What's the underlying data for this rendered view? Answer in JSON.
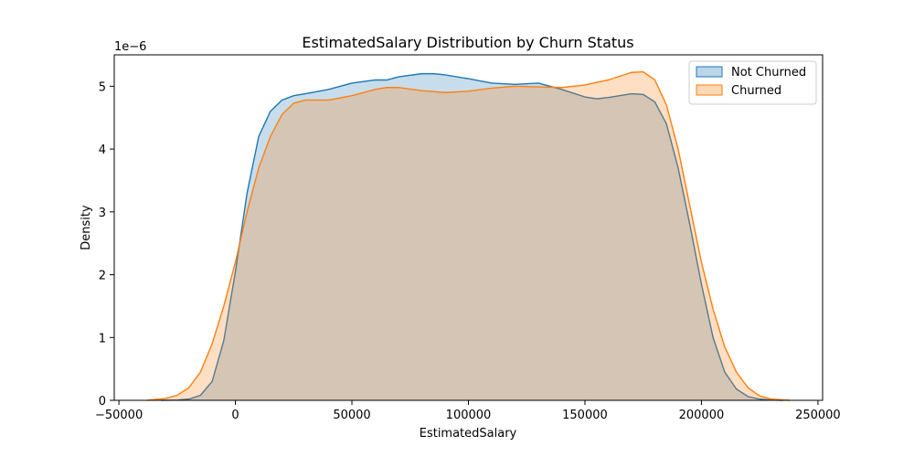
{
  "chart_data": {
    "type": "area",
    "title": "EstimatedSalary Distribution by Churn Status",
    "xlabel": "EstimatedSalary",
    "ylabel": "Density",
    "y_offset_label": "1e−6",
    "xlim": [
      -52000,
      252000
    ],
    "ylim": [
      0,
      5.5
    ],
    "x_ticks": [
      -50000,
      0,
      50000,
      100000,
      150000,
      200000,
      250000
    ],
    "x_tick_labels": [
      "−50000",
      "0",
      "50000",
      "100000",
      "150000",
      "200000",
      "250000"
    ],
    "y_ticks": [
      0,
      1,
      2,
      3,
      4,
      5
    ],
    "y_tick_labels": [
      "0",
      "1",
      "2",
      "3",
      "4",
      "5"
    ],
    "grid": false,
    "legend_position": "top-right",
    "series": [
      {
        "name": "Not Churned",
        "color": "#1f77b4",
        "fill": "#1f77b4",
        "x": [
          -32000,
          -25000,
          -20000,
          -15000,
          -10000,
          -5000,
          0,
          5000,
          10000,
          15000,
          20000,
          25000,
          30000,
          40000,
          50000,
          60000,
          65000,
          70000,
          80000,
          85000,
          90000,
          100000,
          110000,
          120000,
          130000,
          140000,
          150000,
          155000,
          160000,
          170000,
          175000,
          180000,
          185000,
          190000,
          195000,
          200000,
          205000,
          210000,
          215000,
          220000,
          225000,
          230000,
          235000
        ],
        "y": [
          0.0,
          0.005,
          0.02,
          0.08,
          0.3,
          0.95,
          2.05,
          3.3,
          4.2,
          4.6,
          4.78,
          4.85,
          4.88,
          4.95,
          5.05,
          5.1,
          5.1,
          5.15,
          5.2,
          5.2,
          5.18,
          5.12,
          5.05,
          5.03,
          5.05,
          4.95,
          4.83,
          4.8,
          4.82,
          4.88,
          4.87,
          4.75,
          4.4,
          3.7,
          2.8,
          1.85,
          1.0,
          0.45,
          0.18,
          0.06,
          0.02,
          0.005,
          0.0
        ]
      },
      {
        "name": "Churned",
        "color": "#ff7f0e",
        "fill": "#ff7f0e",
        "x": [
          -38000,
          -30000,
          -25000,
          -20000,
          -15000,
          -10000,
          -5000,
          0,
          5000,
          10000,
          15000,
          20000,
          25000,
          30000,
          40000,
          50000,
          60000,
          65000,
          70000,
          80000,
          90000,
          100000,
          110000,
          120000,
          130000,
          140000,
          150000,
          160000,
          170000,
          175000,
          180000,
          185000,
          190000,
          195000,
          200000,
          205000,
          210000,
          215000,
          220000,
          225000,
          230000,
          238000
        ],
        "y": [
          0.0,
          0.03,
          0.08,
          0.2,
          0.45,
          0.9,
          1.5,
          2.2,
          3.0,
          3.7,
          4.2,
          4.55,
          4.73,
          4.78,
          4.78,
          4.85,
          4.95,
          4.98,
          4.98,
          4.93,
          4.9,
          4.92,
          4.97,
          5.0,
          4.99,
          4.98,
          5.02,
          5.1,
          5.22,
          5.23,
          5.1,
          4.7,
          4.0,
          3.1,
          2.2,
          1.45,
          0.85,
          0.45,
          0.2,
          0.07,
          0.02,
          0.0
        ]
      }
    ]
  }
}
